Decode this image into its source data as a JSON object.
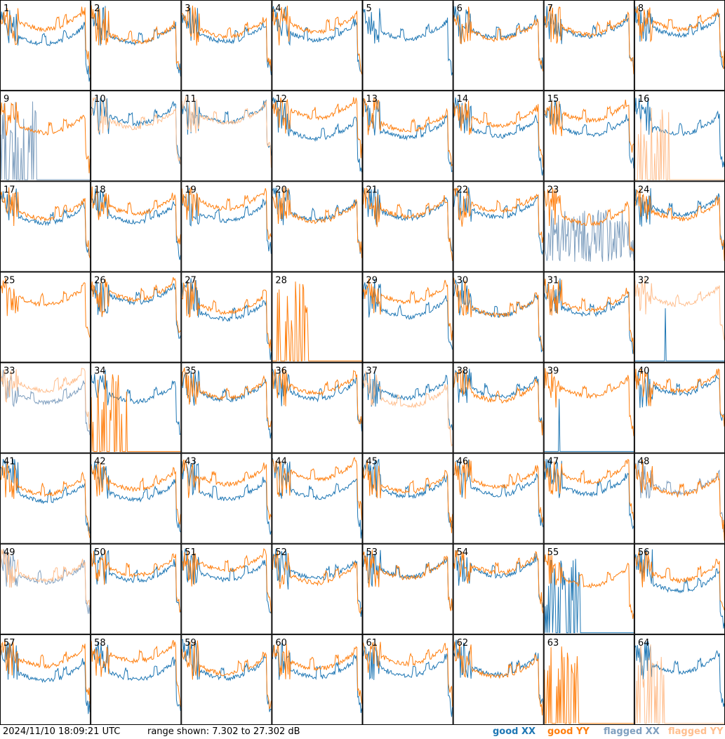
{
  "chart_data": {
    "type": "line",
    "grid": {
      "rows": 8,
      "cols": 8
    },
    "tiles": [
      "1",
      "2",
      "3",
      "4",
      "5",
      "6",
      "7",
      "8",
      "9",
      "10",
      "11",
      "12",
      "13",
      "14",
      "15",
      "16",
      "17",
      "18",
      "19",
      "20",
      "21",
      "22",
      "23",
      "24",
      "25",
      "26",
      "27",
      "28",
      "29",
      "30",
      "31",
      "32",
      "33",
      "34",
      "35",
      "36",
      "37",
      "38",
      "39",
      "40",
      "41",
      "42",
      "43",
      "44",
      "45",
      "46",
      "47",
      "48",
      "49",
      "50",
      "51",
      "52",
      "53",
      "54",
      "55",
      "56",
      "57",
      "58",
      "59",
      "60",
      "61",
      "62",
      "63",
      "64"
    ],
    "ylim": [
      7.302,
      27.302
    ],
    "timestamp": "2024/11/10 18:09:21 UTC",
    "range_text": "range shown: 7.302 to 27.302 dB",
    "legend": [
      {
        "label": "good XX",
        "color": "#1f77b4"
      },
      {
        "label": "good YY",
        "color": "#ff7f0e"
      },
      {
        "label": "flagged XX",
        "color": "#7f9fbf"
      },
      {
        "label": "flagged YY",
        "color": "#ffbf8f"
      }
    ],
    "series_styles": {
      "tile_5": {
        "xx": "good",
        "yy": "none"
      },
      "tile_9": {
        "xx": "flagged-spiky",
        "yy": "good"
      },
      "tile_10": {
        "xx": "good",
        "yy": "flagged"
      },
      "tile_11": {
        "xx": "good",
        "yy": "flagged"
      },
      "tile_16": {
        "xx": "good",
        "yy": "flagged-spiky"
      },
      "tile_23": {
        "xx": "flagged-noisy",
        "yy": "good"
      },
      "tile_25": {
        "xx": "none",
        "yy": "good"
      },
      "tile_28": {
        "xx": "none",
        "yy": "spiky"
      },
      "tile_32": {
        "xx": "spike",
        "yy": "flagged"
      },
      "tile_33": {
        "xx": "flagged",
        "yy": "flagged"
      },
      "tile_34": {
        "xx": "good",
        "yy": "spiky"
      },
      "tile_37": {
        "xx": "good",
        "yy": "flagged"
      },
      "tile_39": {
        "xx": "spike",
        "yy": "good"
      },
      "tile_48": {
        "xx": "flagged",
        "yy": "good"
      },
      "tile_49": {
        "xx": "flagged",
        "yy": "flagged"
      },
      "tile_55": {
        "xx": "spiky",
        "yy": "good"
      },
      "tile_63": {
        "xx": "none",
        "yy": "spiky"
      },
      "tile_64": {
        "xx": "good",
        "yy": "flagged-spiky"
      }
    }
  }
}
